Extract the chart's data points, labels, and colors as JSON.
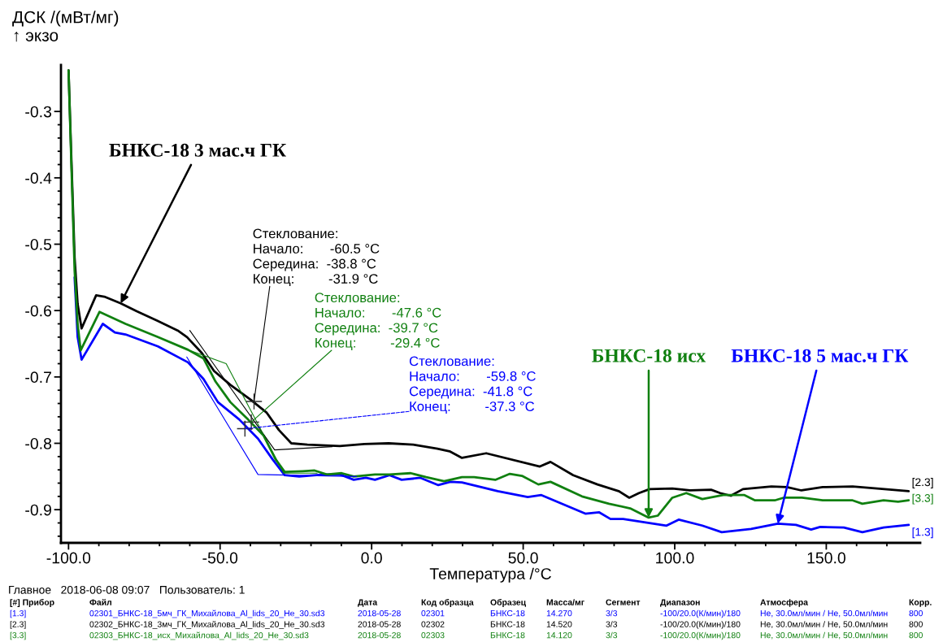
{
  "chart_data": {
    "type": "line",
    "xlabel": "Температура /°C",
    "ylabel": "ДСК /(мВт/мг)\n↑ экзо",
    "xlim": [
      -102.5,
      181
    ],
    "ylim": [
      -0.95,
      -0.23
    ],
    "xticks": [
      {
        "value": -100,
        "label": "-100.0"
      },
      {
        "value": -90,
        "label": null
      },
      {
        "value": -80,
        "label": null
      },
      {
        "value": -70,
        "label": null
      },
      {
        "value": -60,
        "label": null
      },
      {
        "value": -50,
        "label": "-50.0"
      },
      {
        "value": -40,
        "label": null
      },
      {
        "value": -30,
        "label": null
      },
      {
        "value": -20,
        "label": null
      },
      {
        "value": -10,
        "label": null
      },
      {
        "value": 0,
        "label": "0.0"
      },
      {
        "value": 10,
        "label": null
      },
      {
        "value": 20,
        "label": null
      },
      {
        "value": 30,
        "label": null
      },
      {
        "value": 40,
        "label": null
      },
      {
        "value": 50,
        "label": "50.0"
      },
      {
        "value": 60,
        "label": null
      },
      {
        "value": 70,
        "label": null
      },
      {
        "value": 80,
        "label": null
      },
      {
        "value": 90,
        "label": null
      },
      {
        "value": 100,
        "label": "100.0"
      },
      {
        "value": 110,
        "label": null
      },
      {
        "value": 120,
        "label": null
      },
      {
        "value": 130,
        "label": null
      },
      {
        "value": 140,
        "label": null
      },
      {
        "value": 150,
        "label": "150.0"
      },
      {
        "value": 160,
        "label": null
      },
      {
        "value": 170,
        "label": null
      }
    ],
    "yticks": [
      -0.3,
      {
        "value": -0.32,
        "label": null
      },
      {
        "value": -0.34,
        "label": null
      },
      {
        "value": -0.36,
        "label": null
      },
      {
        "value": -0.38,
        "label": null
      },
      -0.4,
      {
        "value": -0.42,
        "label": null
      },
      {
        "value": -0.44,
        "label": null
      },
      {
        "value": -0.46,
        "label": null
      },
      {
        "value": -0.48,
        "label": null
      },
      -0.5,
      {
        "value": -0.52,
        "label": null
      },
      {
        "value": -0.54,
        "label": null
      },
      {
        "value": -0.56,
        "label": null
      },
      {
        "value": -0.58,
        "label": null
      },
      -0.6,
      {
        "value": -0.62,
        "label": null
      },
      {
        "value": -0.64,
        "label": null
      },
      {
        "value": -0.66,
        "label": null
      },
      {
        "value": -0.68,
        "label": null
      },
      -0.7,
      {
        "value": -0.72,
        "label": null
      },
      {
        "value": -0.74,
        "label": null
      },
      {
        "value": -0.76,
        "label": null
      },
      {
        "value": -0.78,
        "label": null
      },
      -0.8,
      {
        "value": -0.82,
        "label": null
      },
      {
        "value": -0.84,
        "label": null
      },
      {
        "value": -0.86,
        "label": null
      },
      {
        "value": -0.88,
        "label": null
      },
      -0.9,
      {
        "value": -0.92,
        "label": null
      },
      {
        "value": -0.94,
        "label": null
      }
    ],
    "grid": false,
    "legend": false,
    "series": [
      {
        "name": "БНКС-18 5 мас.ч ГК",
        "color": "#0000ff",
        "x": [
          -98,
          -97,
          -95.7,
          -88.7,
          -84.7,
          -81.2,
          -70.5,
          -60.6,
          -55.5,
          -50.7,
          -43.7,
          -37.5,
          -32.7,
          -28.7,
          -23.9,
          -15.8,
          -10.4,
          -5.9,
          -1.9,
          1.1,
          5.9,
          9.9,
          16.1,
          22,
          26,
          29.8,
          41.6,
          51.5,
          56,
          70.5,
          75.1,
          78.8,
          83,
          97.3,
          101.3,
          109.1,
          115.5,
          125.2,
          134,
          140,
          145,
          148,
          155.8,
          161.9,
          168.9,
          177.2
        ],
        "values": [
          -0.55,
          -0.64,
          -0.674,
          -0.62,
          -0.633,
          -0.636,
          -0.654,
          -0.678,
          -0.703,
          -0.738,
          -0.764,
          -0.793,
          -0.824,
          -0.848,
          -0.85,
          -0.847,
          -0.847,
          -0.855,
          -0.852,
          -0.855,
          -0.848,
          -0.855,
          -0.852,
          -0.863,
          -0.858,
          -0.859,
          -0.872,
          -0.881,
          -0.878,
          -0.906,
          -0.904,
          -0.914,
          -0.914,
          -0.924,
          -0.915,
          -0.924,
          -0.934,
          -0.929,
          -0.921,
          -0.923,
          -0.93,
          -0.926,
          -0.927,
          -0.934,
          -0.927,
          -0.923
        ]
      },
      {
        "name": "БНКС-18 3 мас.ч ГК",
        "color": "#000000",
        "x": [
          -100,
          -99,
          -98,
          -97,
          -95.7,
          -90.9,
          -88.2,
          -82.8,
          -77.5,
          -70.8,
          -64,
          -60.9,
          -56,
          -52,
          -46.6,
          -40,
          -34.6,
          -30.6,
          -26.5,
          -21.2,
          -10.5,
          -2.4,
          5.6,
          13.7,
          21.7,
          25.7,
          29.8,
          37.8,
          55.5,
          59,
          66.5,
          74.5,
          81.5,
          85,
          88.2,
          91.7,
          99.2,
          105,
          112,
          115,
          118.5,
          122.5,
          131.9,
          137,
          141.8,
          148.8,
          158.7,
          166.8,
          177.2
        ],
        "values": [
          -0.238,
          -0.38,
          -0.52,
          -0.59,
          -0.627,
          -0.577,
          -0.579,
          -0.589,
          -0.601,
          -0.615,
          -0.63,
          -0.64,
          -0.664,
          -0.691,
          -0.712,
          -0.734,
          -0.754,
          -0.78,
          -0.8,
          -0.802,
          -0.804,
          -0.801,
          -0.8,
          -0.802,
          -0.808,
          -0.812,
          -0.822,
          -0.815,
          -0.835,
          -0.828,
          -0.848,
          -0.862,
          -0.872,
          -0.882,
          -0.875,
          -0.869,
          -0.868,
          -0.871,
          -0.87,
          -0.875,
          -0.879,
          -0.869,
          -0.865,
          -0.866,
          -0.871,
          -0.866,
          -0.865,
          -0.868,
          -0.872
        ]
      },
      {
        "name": "БНКС-18 исх",
        "color": "#108010",
        "x": [
          -100,
          -99,
          -98,
          -97,
          -96,
          -89.8,
          -81.2,
          -70.5,
          -60.6,
          -55.5,
          -51.5,
          -46.6,
          -40.8,
          -35.7,
          -31.7,
          -28.7,
          -22.8,
          -18.8,
          -14.8,
          -9.9,
          -5.9,
          1.1,
          5.9,
          12.9,
          18,
          23.9,
          29.8,
          33.8,
          40.8,
          45.6,
          49.6,
          55,
          59,
          69.4,
          78.3,
          85.3,
          91.4,
          94.4,
          99.2,
          103.8,
          109.1,
          116,
          119.6,
          123,
          126.5,
          133,
          135.9,
          142,
          148.8,
          158.7,
          161.9,
          168.9,
          173.7,
          177.2
        ],
        "values": [
          -0.238,
          -0.39,
          -0.54,
          -0.62,
          -0.66,
          -0.602,
          -0.62,
          -0.64,
          -0.659,
          -0.672,
          -0.707,
          -0.738,
          -0.764,
          -0.788,
          -0.824,
          -0.843,
          -0.842,
          -0.841,
          -0.847,
          -0.845,
          -0.85,
          -0.847,
          -0.847,
          -0.845,
          -0.851,
          -0.857,
          -0.851,
          -0.851,
          -0.855,
          -0.846,
          -0.849,
          -0.862,
          -0.858,
          -0.88,
          -0.891,
          -0.898,
          -0.912,
          -0.909,
          -0.882,
          -0.875,
          -0.884,
          -0.878,
          -0.878,
          -0.878,
          -0.886,
          -0.886,
          -0.882,
          -0.882,
          -0.886,
          -0.886,
          -0.891,
          -0.886,
          -0.888,
          -0.886
        ]
      },
      {
        "color": "#0000ff",
        "x": [
          -61,
          -37.5,
          -5
        ],
        "values": [
          -0.67,
          -0.847,
          -0.85
        ]
      },
      {
        "color": "#000000",
        "x": [
          -60,
          -32,
          -13
        ],
        "values": [
          -0.63,
          -0.81,
          -0.805
        ]
      },
      {
        "color": "#108010",
        "x": [
          -60,
          -48,
          -29,
          -18
        ],
        "values": [
          -0.66,
          -0.68,
          -0.845,
          -0.845
        ]
      }
    ],
    "annotations": [
      {
        "text": "Стеклование:\nНачало:       -59.8 °C\nСередина:  -41.8 °C\nКонец:         -37.3 °C",
        "x": -41.8,
        "y": -0.778
      },
      {
        "text": "Стеклование:\nНачало:       -60.5 °C\nСередина:  -38.8 °C\nКонец:         -31.9 °C",
        "x": -38.8,
        "y": -0.737
      },
      {
        "text": "Стеклование:\nНачало:       -47.6 °C\nСередина:  -39.7 °C\nКонец:         -29.4 °C",
        "x": -39.7,
        "y": -0.768
      },
      {
        "text": "[1.3]",
        "x": 177.2,
        "y": -0.923
      },
      {
        "text": "[2.3]",
        "x": 177.2,
        "y": -0.872
      },
      {
        "text": "[3.3]",
        "x": 177.2,
        "y": -0.886
      },
      "Главное   2018-06-08 09:07   Пользователь: 1",
      "[#] Прибор\tФайл\tДата\tКод образца\tОбразец\tМасса/мг\tСегмент\tДиапазон\tАтмосфера\tКорр.",
      "[1.3]\t02301_БНКС-18_5мч_ГК_Михайлова_Al_lids_20_He_30.sd3\t2018-05-28\t02301\tБНКС-18\t14.270\t3/3\t-100/20.0(К/мин)/180\tHe, 30.0мл/мин / He, 50.0мл/мин\t800",
      "[2.3]\t02302_БНКС-18_3мч_ГК_Михайлова_Al_lids_20_He_30.sd3\t2018-05-28\t02302\tБНКС-18\t14.520\t3/3\t-100/20.0(К/мин)/180\tHe, 30.0мл/мин / He, 50.0мл/мин\t800",
      "[3.3]\t02303_БНКС-18_исх_Михайлова_Al_lids_20_He_30.sd3\t2018-05-28\t02303\tБНКС-18\t14.120\t3/3\t-100/20.0(К/мин)/180\tHe, 30.0мл/мин / He, 50.0мл/мин\t800"
    ]
  }
}
